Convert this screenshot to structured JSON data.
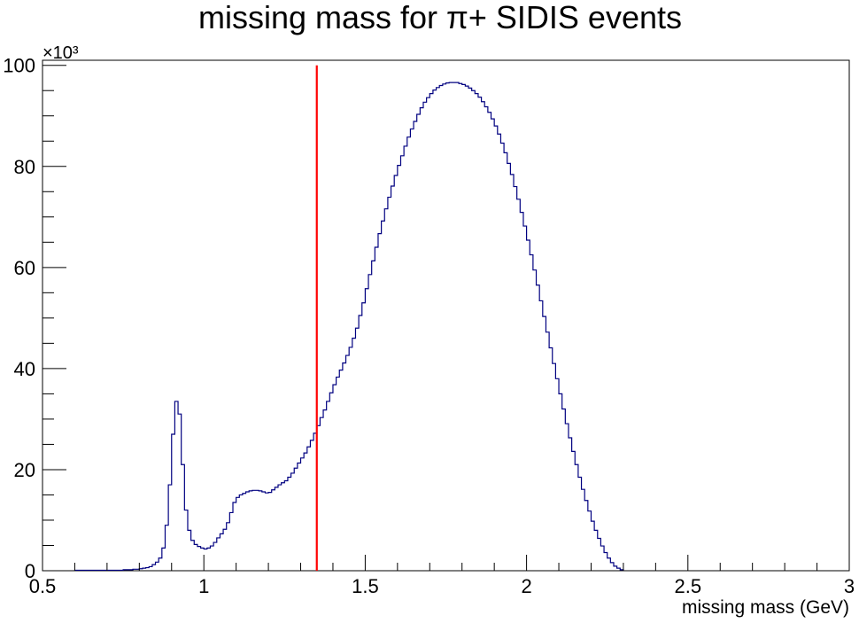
{
  "chart_data": {
    "type": "line",
    "title": "missing mass for π+ SIDIS events",
    "xlabel": "missing mass (GeV)",
    "ylabel": "",
    "xlim": [
      0.5,
      3.0
    ],
    "ylim": [
      0,
      101
    ],
    "y_multiplier_label": "×10³",
    "x_ticks": [
      0.5,
      1,
      1.5,
      2,
      2.5,
      3
    ],
    "x_tick_labels": [
      "0.5",
      "1",
      "1.5",
      "2",
      "2.5",
      "3"
    ],
    "y_ticks": [
      0,
      20,
      40,
      60,
      80,
      100
    ],
    "y_tick_labels": [
      "0",
      "20",
      "40",
      "60",
      "80",
      "100"
    ],
    "grid": false,
    "histogram_color": "#000080",
    "cut_line": {
      "x": 1.35,
      "y_top": 100,
      "color": "#ff0000"
    },
    "series": [
      {
        "bin_width": 0.01,
        "x_start": 0.6,
        "values": [
          0.1,
          0.1,
          0.1,
          0.1,
          0.1,
          0.1,
          0.1,
          0.1,
          0.1,
          0.1,
          0.1,
          0.1,
          0.1,
          0.1,
          0.1,
          0.2,
          0.2,
          0.2,
          0.3,
          0.3,
          0.4,
          0.5,
          0.6,
          0.8,
          1.2,
          1.7,
          2.5,
          4.5,
          9.0,
          17.0,
          27.0,
          33.5,
          31.0,
          21.0,
          12.0,
          8.0,
          6.0,
          5.2,
          4.8,
          4.5,
          4.3,
          4.5,
          4.9,
          5.6,
          6.5,
          7.3,
          8.2,
          9.5,
          11.5,
          13.5,
          14.5,
          15.0,
          15.3,
          15.6,
          15.8,
          15.9,
          15.9,
          15.8,
          15.6,
          15.4,
          15.5,
          16.0,
          16.5,
          17.0,
          17.4,
          17.8,
          18.5,
          19.3,
          20.3,
          21.3,
          22.3,
          23.3,
          24.5,
          25.8,
          27.2,
          28.7,
          30.3,
          31.8,
          33.5,
          35.2,
          36.8,
          38.3,
          39.7,
          41.1,
          42.6,
          44.2,
          46.0,
          48.0,
          50.5,
          53.0,
          55.8,
          58.6,
          61.3,
          64.0,
          66.7,
          69.2,
          71.6,
          73.9,
          76.1,
          78.2,
          80.2,
          82.1,
          84.0,
          85.8,
          87.4,
          88.9,
          90.3,
          91.6,
          92.7,
          93.6,
          94.4,
          95.1,
          95.6,
          96.0,
          96.3,
          96.5,
          96.6,
          96.6,
          96.6,
          96.4,
          96.2,
          95.9,
          95.5,
          95.0,
          94.4,
          93.7,
          92.8,
          91.8,
          90.7,
          89.4,
          88.0,
          86.4,
          84.6,
          82.7,
          80.6,
          78.4,
          76.0,
          73.5,
          70.9,
          68.2,
          65.4,
          62.5,
          59.5,
          56.5,
          53.4,
          50.3,
          47.2,
          44.1,
          41.0,
          38.0,
          35.0,
          32.0,
          29.1,
          26.3,
          23.6,
          21.0,
          18.5,
          16.1,
          13.9,
          11.8,
          9.8,
          8.0,
          6.4,
          4.9,
          3.6,
          2.5,
          1.6,
          0.9,
          0.5,
          0.2
        ]
      }
    ]
  }
}
